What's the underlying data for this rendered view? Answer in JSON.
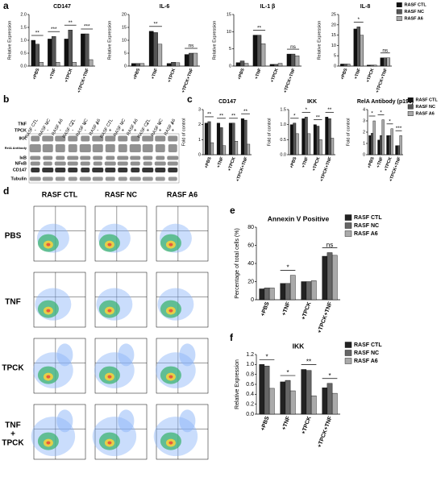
{
  "panel_labels": [
    "a",
    "b",
    "c",
    "d",
    "e",
    "f"
  ],
  "chart_data": [
    {
      "type": "bar",
      "title": "CD147",
      "ylabel": "Relative Expression",
      "categories": [
        "+PBS",
        "+TNF",
        "+TPCK",
        "+TPCK+TNF"
      ],
      "series": [
        {
          "color": "#111111",
          "values": [
            1.0,
            1.05,
            1.05,
            1.25
          ]
        },
        {
          "color": "#555555",
          "values": [
            0.85,
            1.15,
            1.4,
            1.25
          ]
        },
        {
          "color": "#aaaaaa",
          "values": [
            0.15,
            0.15,
            0.15,
            0.25
          ]
        }
      ],
      "ylim": [
        0,
        2
      ],
      "yticks": [
        {
          "value": 0,
          "label": "0.0"
        },
        {
          "value": 0.5,
          "label": "0.5"
        },
        {
          "value": 1,
          "label": "1.0"
        },
        {
          "value": 1.5,
          "label": "1.5"
        },
        {
          "value": 2,
          "label": "2.0"
        }
      ],
      "significance": [
        "**",
        "***",
        "**",
        "***"
      ]
    },
    {
      "type": "bar",
      "title": "IL-6",
      "ylabel": "Relative Expression",
      "categories": [
        "+PBS",
        "+TNF",
        "+TPCK",
        "+TPCK+TNF"
      ],
      "series": [
        {
          "color": "#111111",
          "values": [
            1,
            13.5,
            1,
            4.5
          ]
        },
        {
          "color": "#555555",
          "values": [
            1,
            13,
            1.5,
            5
          ]
        },
        {
          "color": "#aaaaaa",
          "values": [
            1,
            8.5,
            1.3,
            5
          ]
        }
      ],
      "ylim": [
        0,
        20
      ],
      "yticks": [
        0,
        5,
        10,
        15,
        20
      ],
      "significance": [
        null,
        "**",
        null,
        "ns"
      ]
    },
    {
      "type": "bar",
      "title": "IL-1 β",
      "ylabel": "Relative Expression",
      "categories": [
        "+PBS",
        "+TNF",
        "+TPCK",
        "+TPCK+TNF"
      ],
      "series": [
        {
          "color": "#111111",
          "values": [
            1,
            9,
            0.5,
            3.5
          ]
        },
        {
          "color": "#555555",
          "values": [
            1.5,
            9,
            0.5,
            3.5
          ]
        },
        {
          "color": "#aaaaaa",
          "values": [
            0.8,
            6.5,
            0.8,
            3
          ]
        }
      ],
      "ylim": [
        0,
        15
      ],
      "yticks": [
        0,
        5,
        10,
        15
      ],
      "significance": [
        null,
        "**",
        null,
        "ns"
      ]
    },
    {
      "type": "bar",
      "title": "IL-8",
      "ylabel": "Relative Expression",
      "categories": [
        "+PBS",
        "+TNF",
        "+TPCK",
        "+TPCK+TNF"
      ],
      "series": [
        {
          "name": "RASF CTL",
          "color": "#111111",
          "values": [
            1,
            18,
            0.5,
            4
          ]
        },
        {
          "name": "RASF NC",
          "color": "#555555",
          "values": [
            1,
            19,
            0.5,
            4
          ]
        },
        {
          "name": "RASF A6",
          "color": "#aaaaaa",
          "values": [
            1,
            15,
            0.5,
            4
          ]
        }
      ],
      "ylim": [
        0,
        25
      ],
      "yticks": [
        0,
        5,
        10,
        15,
        20,
        25
      ],
      "significance": [
        null,
        "*",
        null,
        "ns"
      ],
      "legend": "upper right"
    },
    {
      "type": "bar",
      "title": "CD147",
      "ylabel": "Fold of control",
      "categories": [
        "+PBS",
        "+TNF",
        "+TPCK",
        "+TPCK+TNF"
      ],
      "series": [
        {
          "color": "#111111",
          "values": [
            2.1,
            2.1,
            2.1,
            2.4
          ]
        },
        {
          "color": "#555555",
          "values": [
            2.2,
            1.8,
            2.1,
            2.3
          ]
        },
        {
          "color": "#aaaaaa",
          "values": [
            0.8,
            0.6,
            0.9,
            0.7
          ]
        }
      ],
      "ylim": [
        0,
        3
      ],
      "yticks": [
        0,
        1,
        2,
        3
      ],
      "significance": [
        "**",
        "**",
        "**",
        "**"
      ]
    },
    {
      "type": "bar",
      "title": "IKK",
      "ylabel": "Fold of control",
      "categories": [
        "+PBS",
        "+TNF",
        "+TPCK",
        "+TPCK+TNF"
      ],
      "series": [
        {
          "color": "#111111",
          "values": [
            1.0,
            1.2,
            1.0,
            1.25
          ]
        },
        {
          "color": "#555555",
          "values": [
            1.05,
            1.25,
            0.95,
            1.2
          ]
        },
        {
          "color": "#aaaaaa",
          "values": [
            0.7,
            0.7,
            0.5,
            0.55
          ]
        }
      ],
      "ylim": [
        0,
        1.5
      ],
      "yticks": [
        {
          "value": 0,
          "label": "0.0"
        },
        {
          "value": 0.5,
          "label": "0.5"
        },
        {
          "value": 1,
          "label": "1.0"
        },
        {
          "value": 1.5,
          "label": "1.5"
        }
      ],
      "significance": [
        "*",
        "*",
        "**",
        "**"
      ]
    },
    {
      "type": "bar",
      "title": "RelA Antibody (p190)",
      "ylabel": "Fold of control",
      "categories": [
        "+PBS",
        "+TNF",
        "+TPCK",
        "+TPCK+TNF"
      ],
      "series": [
        {
          "name": "RASF CTL",
          "color": "#111111",
          "values": [
            1.7,
            1.3,
            1.7,
            0.8
          ]
        },
        {
          "name": "RASF NC",
          "color": "#555555",
          "values": [
            1.9,
            1.7,
            1.7,
            0.8
          ]
        },
        {
          "name": "RASF A6",
          "color": "#aaaaaa",
          "values": [
            3.0,
            3.1,
            2.3,
            1.7
          ]
        }
      ],
      "ylim": [
        0,
        4
      ],
      "yticks": [
        0,
        1,
        2,
        3,
        4
      ],
      "significance": [
        "*",
        "*",
        "*",
        "***"
      ],
      "legend": "upper right"
    },
    {
      "type": "bar",
      "title": "Annexin V Positive",
      "ylabel": "Percentage of total cells (%)",
      "categories": [
        "+PBS",
        "+TNF",
        "+TPCK",
        "+TPCK+TNF"
      ],
      "series": [
        {
          "name": "RASF CTL",
          "color": "#222222",
          "values": [
            12,
            18,
            20,
            48
          ]
        },
        {
          "name": "RASF NC",
          "color": "#666666",
          "values": [
            13,
            18,
            20,
            52
          ]
        },
        {
          "name": "RASF A6",
          "color": "#aaaaaa",
          "values": [
            13,
            27,
            21,
            49
          ]
        }
      ],
      "ylim": [
        0,
        80
      ],
      "yticks": [
        0,
        20,
        40,
        60,
        80
      ],
      "significance": [
        null,
        "*",
        null,
        "ns"
      ],
      "legend": "upper right"
    },
    {
      "type": "bar",
      "title": "IKK",
      "ylabel": "Relative Expression",
      "categories": [
        "+PBS",
        "+TNF",
        "+TPCK",
        "+TPCK+TNF"
      ],
      "series": [
        {
          "name": "RASF CTL",
          "color": "#222222",
          "values": [
            1.0,
            0.65,
            0.9,
            0.53
          ]
        },
        {
          "name": "RASF NC",
          "color": "#666666",
          "values": [
            0.97,
            0.68,
            0.88,
            0.62
          ]
        },
        {
          "name": "RASF A6",
          "color": "#aaaaaa",
          "values": [
            0.52,
            0.47,
            0.37,
            0.42
          ]
        }
      ],
      "ylim": [
        0,
        1.2
      ],
      "yticks": [
        {
          "value": 0,
          "label": "0.0"
        },
        {
          "value": 0.2,
          "label": "0.2"
        },
        {
          "value": 0.4,
          "label": "0.4"
        },
        {
          "value": 0.6,
          "label": "0.6"
        },
        {
          "value": 0.8,
          "label": "0.8"
        },
        {
          "value": 1,
          "label": "1.0"
        },
        {
          "value": 1.2,
          "label": "1.2"
        }
      ],
      "significance": [
        "*",
        "*",
        "**",
        "*"
      ],
      "legend": "upper right"
    }
  ],
  "blot": {
    "columns": [
      "RASF CTL",
      "RASF NC",
      "RASF A6",
      "RASF CTL",
      "RASF NC",
      "RASF A6",
      "RASF CTL",
      "RASF NC",
      "RASF A6",
      "RASF CTL",
      "RASF NC",
      "RASF A6"
    ],
    "treatments": [
      {
        "name": "TNF",
        "signs": [
          "-",
          "-",
          "-",
          "+",
          "+",
          "+",
          "-",
          "-",
          "-",
          "+",
          "+",
          "+"
        ]
      },
      {
        "name": "TPCK",
        "signs": [
          "-",
          "-",
          "-",
          "-",
          "-",
          "-",
          "+",
          "+",
          "+",
          "+",
          "+",
          "+"
        ]
      }
    ],
    "rows": [
      "IKK",
      "RelA Antibody",
      "IκB",
      "NFκB",
      "CD147",
      "Tubulin"
    ]
  },
  "flow": {
    "columns": [
      "RASF CTL",
      "RASF NC",
      "RASF A6"
    ],
    "rows": [
      [
        "PBS"
      ],
      [
        "TNF"
      ],
      [
        "TPCK"
      ],
      [
        "TNF",
        "+",
        "TPCK"
      ]
    ]
  }
}
